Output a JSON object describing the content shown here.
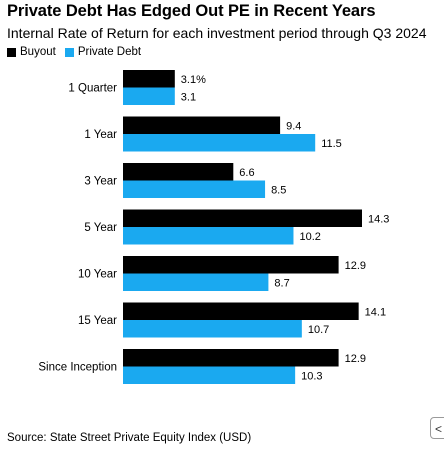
{
  "chart_data": {
    "type": "bar",
    "orientation": "horizontal",
    "title": "Private Debt Has Edged Out PE in Recent Years",
    "subtitle": "Internal Rate of Return for each investment period through Q3 2024",
    "categories": [
      "1 Quarter",
      "1 Year",
      "3 Year",
      "5 Year",
      "10 Year",
      "15 Year",
      "Since Inception"
    ],
    "series": [
      {
        "name": "Buyout",
        "color": "#000000",
        "values": [
          3.1,
          9.4,
          6.6,
          14.3,
          12.9,
          14.1,
          12.9
        ],
        "labels": [
          "3.1%",
          "9.4",
          "6.6",
          "14.3",
          "12.9",
          "14.1",
          "12.9"
        ]
      },
      {
        "name": "Private Debt",
        "color": "#1aa9f0",
        "values": [
          3.1,
          11.5,
          8.5,
          10.2,
          8.7,
          10.7,
          10.3
        ],
        "labels": [
          "3.1",
          "11.5",
          "8.5",
          "10.2",
          "8.7",
          "10.7",
          "10.3"
        ]
      }
    ],
    "xlim": [
      0,
      14.3
    ],
    "grid": false,
    "legend": "top-left"
  },
  "source": "Source: State Street Private Equity Index (USD)",
  "corner_button": {
    "icon": "share-icon",
    "glyph": "<"
  }
}
